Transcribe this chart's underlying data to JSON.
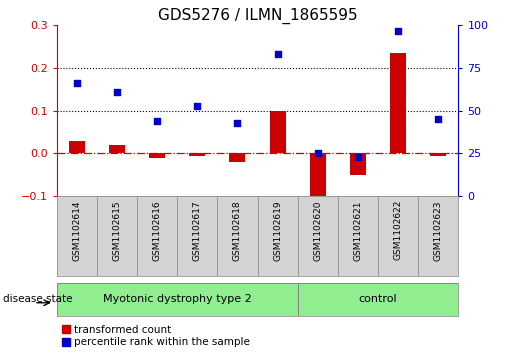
{
  "title": "GDS5276 / ILMN_1865595",
  "samples": [
    "GSM1102614",
    "GSM1102615",
    "GSM1102616",
    "GSM1102617",
    "GSM1102618",
    "GSM1102619",
    "GSM1102620",
    "GSM1102621",
    "GSM1102622",
    "GSM1102623"
  ],
  "transformed_count": [
    0.03,
    0.02,
    -0.01,
    -0.005,
    -0.02,
    0.1,
    -0.12,
    -0.05,
    0.235,
    -0.005
  ],
  "percentile_rank_pct": [
    66,
    61,
    44,
    53,
    43,
    83,
    25,
    23,
    97,
    45
  ],
  "disease_groups": [
    {
      "label": "Myotonic dystrophy type 2",
      "start": 0,
      "end": 6,
      "color": "#90EE90"
    },
    {
      "label": "control",
      "start": 6,
      "end": 10,
      "color": "#90EE90"
    }
  ],
  "left_ylim": [
    -0.1,
    0.3
  ],
  "right_ylim": [
    0,
    100
  ],
  "left_yticks": [
    -0.1,
    0.0,
    0.1,
    0.2,
    0.3
  ],
  "right_yticks": [
    0,
    25,
    50,
    75,
    100
  ],
  "hlines": [
    0.1,
    0.2
  ],
  "bar_color": "#CC0000",
  "scatter_color": "#0000CC",
  "zero_line_color": "#CC0000",
  "left_tick_color": "#CC0000",
  "right_tick_color": "#0000CC",
  "legend_bar_label": "transformed count",
  "legend_scatter_label": "percentile rank within the sample",
  "bg_color": "#ffffff",
  "plot_bg_color": "#ffffff",
  "label_area_color": "#d3d3d3",
  "bar_width": 0.4,
  "title_fontsize": 11,
  "tick_fontsize": 8,
  "sample_fontsize": 6.5,
  "group_fontsize": 8,
  "legend_fontsize": 7.5,
  "disease_state_fontsize": 7.5
}
